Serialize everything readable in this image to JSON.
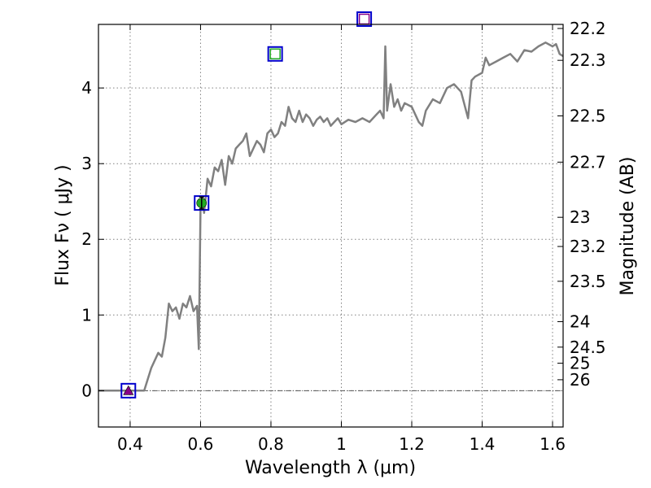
{
  "chart_data": {
    "type": "line",
    "xlabel": "Wavelength  λ (μm)",
    "ylabel": "Flux  Fν  ( μJy )",
    "y2label": "Magnitude (AB)",
    "xlim": [
      0.31,
      1.63
    ],
    "ylim": [
      -0.48,
      4.84
    ],
    "grid": true,
    "x_ticks": [
      {
        "value": 0.4,
        "label": "0.4"
      },
      {
        "value": 0.6,
        "label": "0.6"
      },
      {
        "value": 0.8,
        "label": "0.8"
      },
      {
        "value": 1.0,
        "label": "1"
      },
      {
        "value": 1.2,
        "label": "1.2"
      },
      {
        "value": 1.4,
        "label": "1.4"
      },
      {
        "value": 1.6,
        "label": "1.6"
      }
    ],
    "y_ticks": [
      {
        "value": 0,
        "label": "0"
      },
      {
        "value": 1,
        "label": "1"
      },
      {
        "value": 2,
        "label": "2"
      },
      {
        "value": 3,
        "label": "3"
      },
      {
        "value": 4,
        "label": "4"
      }
    ],
    "y2_ticks": [
      {
        "mag": 22.2,
        "label": "22.2"
      },
      {
        "mag": 22.3,
        "label": "22.3"
      },
      {
        "mag": 22.5,
        "label": "22.5"
      },
      {
        "mag": 22.7,
        "label": "22.7"
      },
      {
        "mag": 23.0,
        "label": "23"
      },
      {
        "mag": 23.2,
        "label": "23.2"
      },
      {
        "mag": 23.5,
        "label": "23.5"
      },
      {
        "mag": 24.0,
        "label": "24"
      },
      {
        "mag": 24.5,
        "label": "24.5"
      },
      {
        "mag": 25.0,
        "label": "25"
      },
      {
        "mag": 26.0,
        "label": "26"
      }
    ],
    "reference_line_y": 0,
    "series": [
      {
        "style": "line",
        "color": "#808080",
        "x": [
          0.31,
          0.44,
          0.46,
          0.48,
          0.49,
          0.5,
          0.51,
          0.52,
          0.53,
          0.54,
          0.55,
          0.56,
          0.57,
          0.58,
          0.59,
          0.595,
          0.6,
          0.605,
          0.61,
          0.62,
          0.63,
          0.64,
          0.65,
          0.66,
          0.67,
          0.68,
          0.69,
          0.7,
          0.71,
          0.72,
          0.73,
          0.74,
          0.75,
          0.76,
          0.77,
          0.78,
          0.79,
          0.8,
          0.81,
          0.82,
          0.83,
          0.84,
          0.85,
          0.86,
          0.87,
          0.88,
          0.89,
          0.9,
          0.91,
          0.92,
          0.93,
          0.94,
          0.95,
          0.96,
          0.97,
          0.98,
          0.99,
          1.0,
          1.02,
          1.04,
          1.06,
          1.08,
          1.1,
          1.11,
          1.12,
          1.125,
          1.13,
          1.14,
          1.15,
          1.16,
          1.17,
          1.18,
          1.2,
          1.22,
          1.23,
          1.24,
          1.26,
          1.28,
          1.3,
          1.32,
          1.34,
          1.36,
          1.37,
          1.38,
          1.4,
          1.41,
          1.42,
          1.44,
          1.46,
          1.48,
          1.5,
          1.52,
          1.54,
          1.56,
          1.58,
          1.6,
          1.61,
          1.62,
          1.63
        ],
        "y": [
          0,
          0,
          0.3,
          0.5,
          0.45,
          0.7,
          1.15,
          1.05,
          1.1,
          0.95,
          1.15,
          1.1,
          1.25,
          1.05,
          1.12,
          0.55,
          2.4,
          2.55,
          2.35,
          2.8,
          2.7,
          2.95,
          2.9,
          3.05,
          2.72,
          3.1,
          3.0,
          3.2,
          3.25,
          3.3,
          3.4,
          3.1,
          3.2,
          3.3,
          3.25,
          3.15,
          3.4,
          3.45,
          3.35,
          3.4,
          3.55,
          3.5,
          3.75,
          3.6,
          3.55,
          3.7,
          3.55,
          3.65,
          3.6,
          3.5,
          3.58,
          3.62,
          3.55,
          3.6,
          3.5,
          3.55,
          3.6,
          3.52,
          3.58,
          3.55,
          3.6,
          3.55,
          3.65,
          3.7,
          3.6,
          4.55,
          3.7,
          4.05,
          3.75,
          3.85,
          3.7,
          3.8,
          3.75,
          3.55,
          3.5,
          3.7,
          3.85,
          3.8,
          4.0,
          4.05,
          3.95,
          3.6,
          4.1,
          4.15,
          4.2,
          4.4,
          4.3,
          4.35,
          4.4,
          4.45,
          4.35,
          4.5,
          4.48,
          4.55,
          4.6,
          4.55,
          4.58,
          4.45,
          4.42
        ]
      }
    ],
    "markers": [
      {
        "x": 0.395,
        "y": 0.0,
        "shape": "open-square",
        "color": "#0000cc"
      },
      {
        "x": 0.395,
        "y": 0.0,
        "shape": "triangle",
        "color": "#880088"
      },
      {
        "x": 0.603,
        "y": 2.48,
        "shape": "open-square",
        "color": "#0000cc"
      },
      {
        "x": 0.603,
        "y": 2.48,
        "shape": "circle",
        "color": "#22aa22"
      },
      {
        "x": 0.603,
        "y": 2.48,
        "shape": "errorbar",
        "color": "#000000",
        "err": 0.08
      },
      {
        "x": 0.812,
        "y": 4.45,
        "shape": "open-square",
        "color": "#0000cc"
      },
      {
        "x": 0.812,
        "y": 4.45,
        "shape": "open-square-small",
        "color": "#22aa22"
      },
      {
        "x": 1.065,
        "y": 4.91,
        "shape": "open-square",
        "color": "#0000cc"
      },
      {
        "x": 1.065,
        "y": 4.91,
        "shape": "open-square-small",
        "color": "#880088"
      }
    ]
  }
}
